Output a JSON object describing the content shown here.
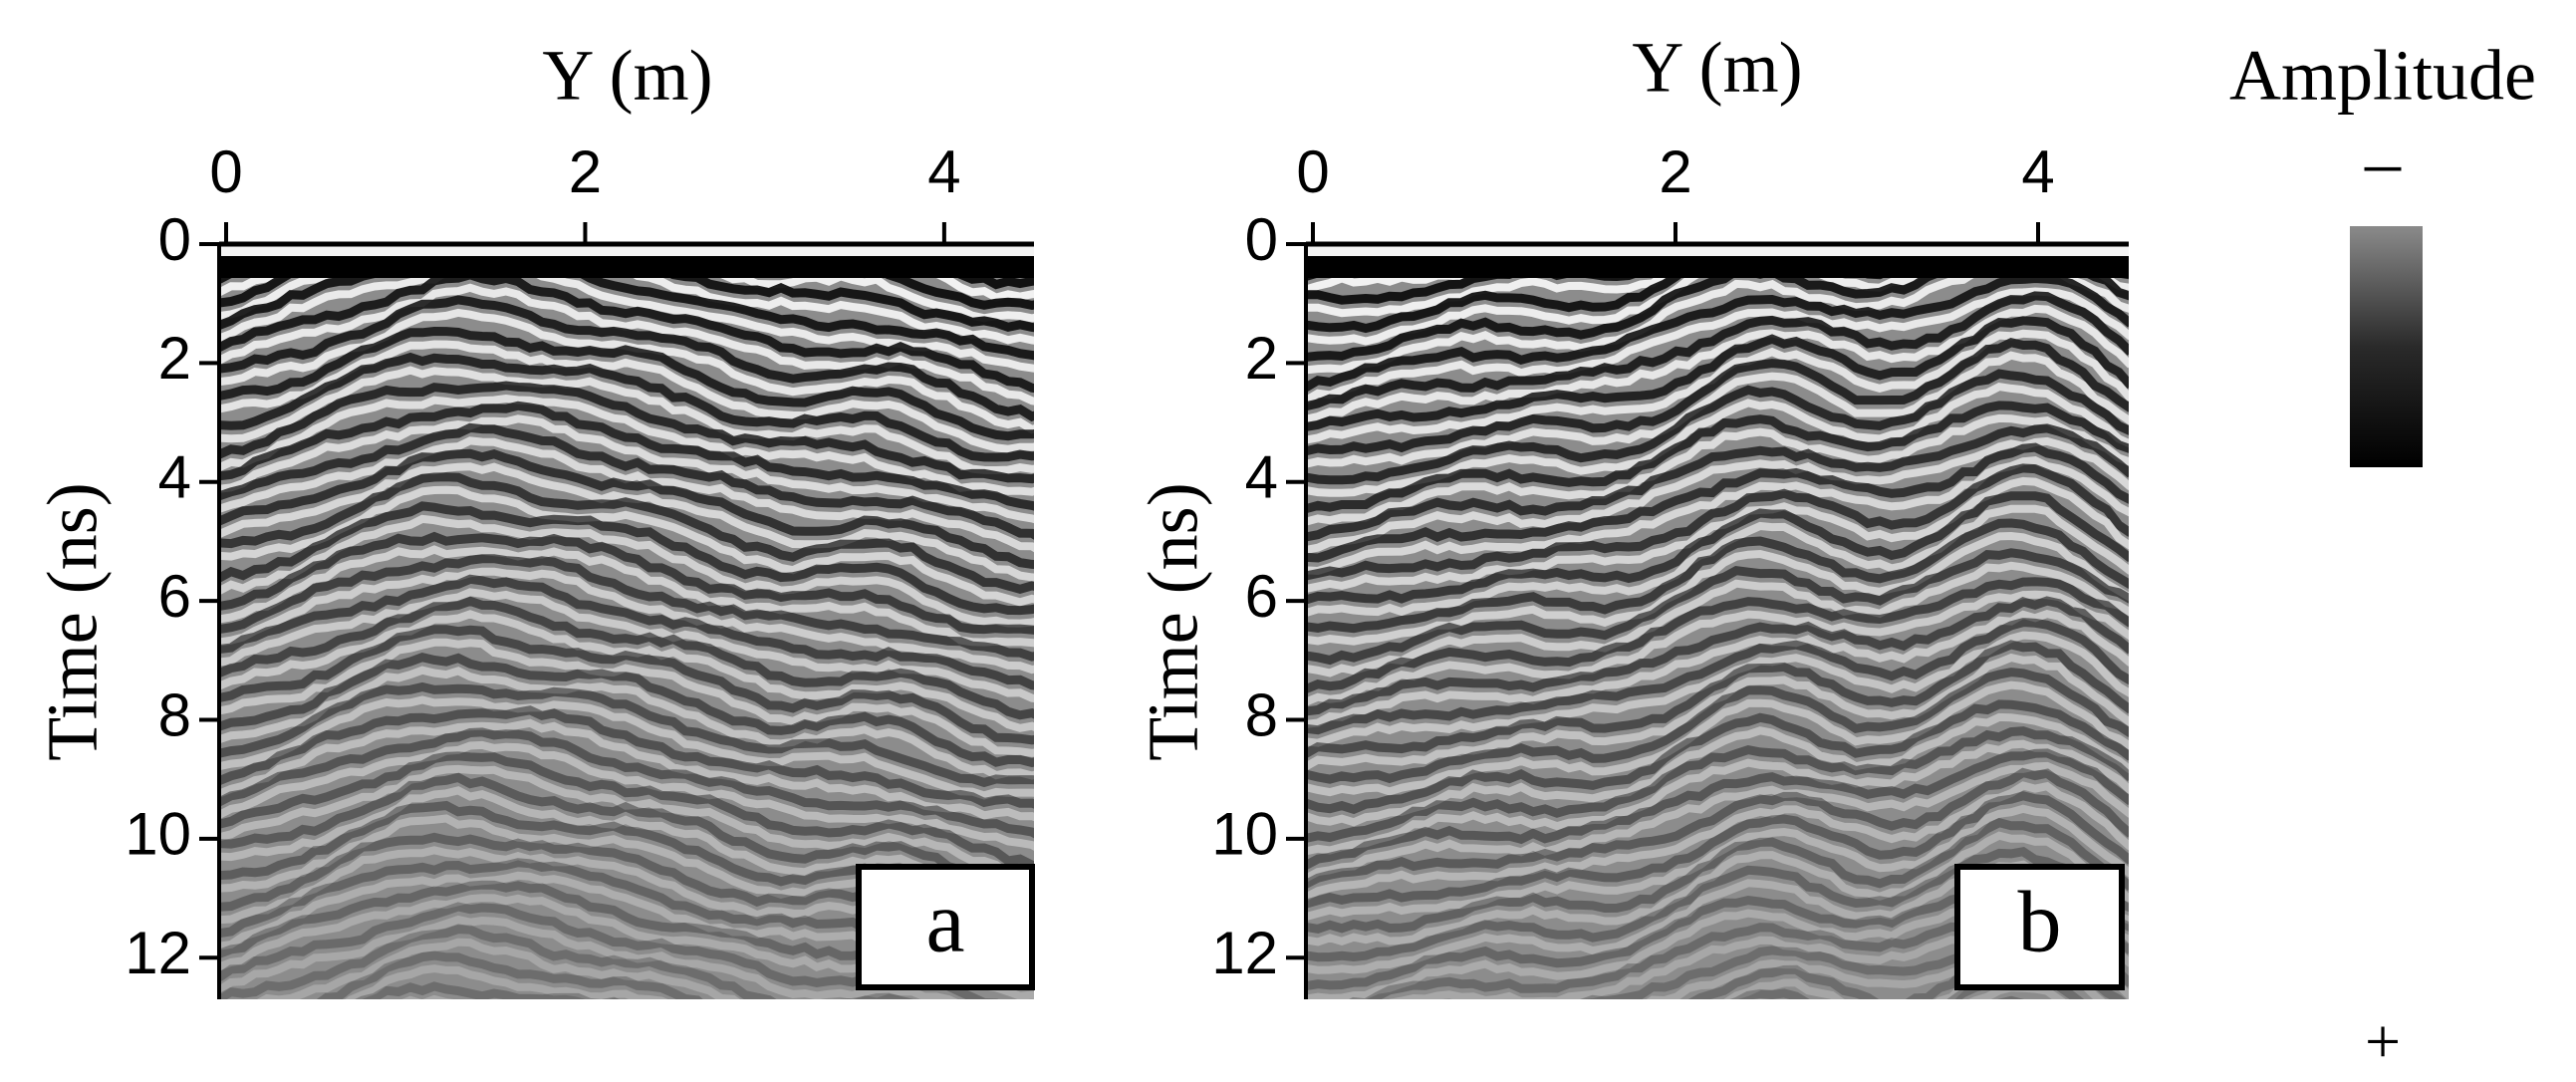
{
  "chart_data": [
    {
      "type": "radargram",
      "xlabel": "Y (m)",
      "ylabel": "Time (ns)",
      "panel_label": "a",
      "xlim": [
        0,
        4.5
      ],
      "xticks": [
        0,
        2,
        4
      ],
      "ylim": [
        0,
        12.7
      ],
      "yticks": [
        0,
        2,
        4,
        6,
        8,
        10,
        12
      ]
    },
    {
      "type": "radargram",
      "xlabel": "Y (m)",
      "ylabel": "Time (ns)",
      "panel_label": "b",
      "xlim": [
        0,
        4.5
      ],
      "xticks": [
        0,
        2,
        4
      ],
      "ylim": [
        0,
        12.7
      ],
      "yticks": [
        0,
        2,
        4,
        6,
        8,
        10,
        12
      ]
    }
  ],
  "colorbar": {
    "title": "Amplitude",
    "top_label": "–",
    "bottom_label": "+"
  }
}
